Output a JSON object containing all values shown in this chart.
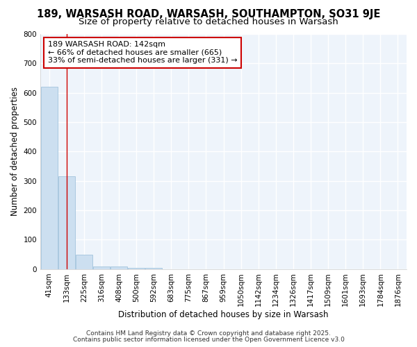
{
  "title1": "189, WARSASH ROAD, WARSASH, SOUTHAMPTON, SO31 9JE",
  "title2": "Size of property relative to detached houses in Warsash",
  "xlabel": "Distribution of detached houses by size in Warsash",
  "ylabel": "Number of detached properties",
  "categories": [
    "41sqm",
    "133sqm",
    "225sqm",
    "316sqm",
    "408sqm",
    "500sqm",
    "592sqm",
    "683sqm",
    "775sqm",
    "867sqm",
    "959sqm",
    "1050sqm",
    "1142sqm",
    "1234sqm",
    "1326sqm",
    "1417sqm",
    "1509sqm",
    "1601sqm",
    "1693sqm",
    "1784sqm",
    "1876sqm"
  ],
  "values": [
    620,
    315,
    50,
    10,
    10,
    5,
    5,
    0,
    0,
    0,
    0,
    0,
    0,
    0,
    0,
    0,
    0,
    0,
    0,
    0,
    0
  ],
  "bar_color": "#ccdff0",
  "bar_edge_color": "#aac8e0",
  "bg_color": "#eef4fb",
  "grid_color": "#ffffff",
  "annotation_text": "189 WARSASH ROAD: 142sqm\n← 66% of detached houses are smaller (665)\n33% of semi-detached houses are larger (331) →",
  "annotation_box_color": "#ffffff",
  "annotation_border_color": "#cc0000",
  "red_line_x": 1,
  "ylim": [
    0,
    800
  ],
  "yticks": [
    0,
    100,
    200,
    300,
    400,
    500,
    600,
    700,
    800
  ],
  "footer1": "Contains HM Land Registry data © Crown copyright and database right 2025.",
  "footer2": "Contains public sector information licensed under the Open Government Licence v3.0",
  "title_fontsize": 10.5,
  "subtitle_fontsize": 9.5,
  "axis_fontsize": 8.5,
  "tick_fontsize": 7.5,
  "annotation_fontsize": 8.0,
  "footer_fontsize": 6.5
}
